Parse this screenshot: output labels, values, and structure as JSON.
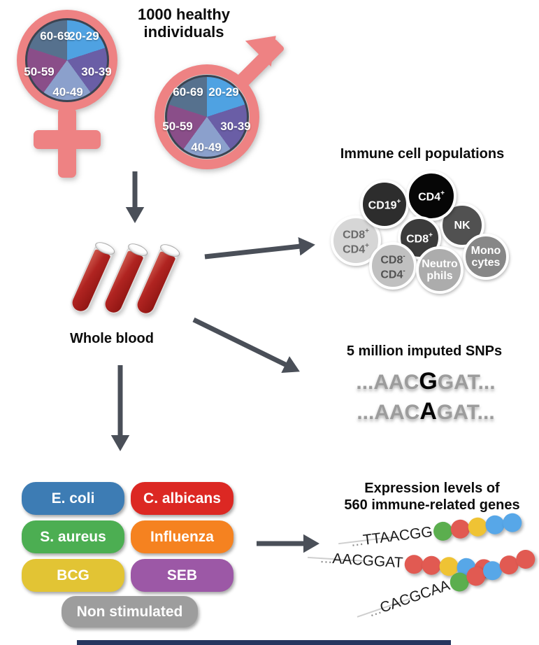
{
  "main_title": {
    "line1": "1000 healthy",
    "line2": "individuals"
  },
  "demographics": {
    "symbol_color": "#EE8283",
    "age_groups": [
      {
        "label": "20-29",
        "color": "#4FA2E2"
      },
      {
        "label": "30-39",
        "color": "#6A5EA6"
      },
      {
        "label": "40-49",
        "color": "#8BA0CC"
      },
      {
        "label": "50-59",
        "color": "#8A4E89"
      },
      {
        "label": "60-69",
        "color": "#56718E"
      }
    ]
  },
  "whole_blood_label": "Whole blood",
  "immune_cells": {
    "title": "Immune cell populations",
    "cells": [
      {
        "lines": [
          {
            "text": "CD8",
            "sup": "+"
          },
          {
            "text": "CD4",
            "sup": "+"
          }
        ],
        "fill": "#D6D6D6",
        "text_color": "#6B6B6B"
      },
      {
        "lines": [
          {
            "text": "CD19",
            "sup": "+"
          }
        ],
        "fill": "#2D2D2D",
        "text_color": "#FFFFFF"
      },
      {
        "lines": [
          {
            "text": "NK",
            "sup": ""
          }
        ],
        "fill": "#515151",
        "text_color": "#FFFFFF"
      },
      {
        "lines": [
          {
            "text": "CD4",
            "sup": "+"
          }
        ],
        "fill": "#060606",
        "text_color": "#FFFFFF"
      },
      {
        "lines": [
          {
            "text": "CD8",
            "sup": "+"
          }
        ],
        "fill": "#3B3B3B",
        "text_color": "#FFFFFF"
      },
      {
        "lines": [
          {
            "text": "Mono",
            "sup": ""
          },
          {
            "text": "cytes",
            "sup": ""
          }
        ],
        "fill": "#878787",
        "text_color": "#FFFFFF"
      },
      {
        "lines": [
          {
            "text": "CD8",
            "sup": "-"
          },
          {
            "text": "CD4",
            "sup": "-"
          }
        ],
        "fill": "#C0C0C0",
        "text_color": "#525252"
      },
      {
        "lines": [
          {
            "text": "Neutro",
            "sup": ""
          },
          {
            "text": "phils",
            "sup": ""
          }
        ],
        "fill": "#ACACAC",
        "text_color": "#FFFFFF"
      }
    ]
  },
  "snps": {
    "title": "5 million imputed SNPs",
    "sequences": [
      {
        "prefix": "...AAC",
        "variant": "G",
        "suffix": "GAT..."
      },
      {
        "prefix": "...AAC",
        "variant": "A",
        "suffix": "GAT..."
      }
    ]
  },
  "stimuli": [
    {
      "label": "E. coli",
      "color": "#3D7CB4"
    },
    {
      "label": "C. albicans",
      "color": "#DC2823"
    },
    {
      "label": "S. aureus",
      "color": "#4CAE52"
    },
    {
      "label": "Influenza",
      "color": "#F58220"
    },
    {
      "label": "BCG",
      "color": "#E2C434"
    },
    {
      "label": "SEB",
      "color": "#9C58A6"
    },
    {
      "label": "Non stimulated",
      "color": "#9D9D9D"
    }
  ],
  "expression": {
    "title_line1": "Expression levels of",
    "title_line2": "560 immune-related genes",
    "bead_colors": {
      "green": "#5BAE4E",
      "red": "#E15A52",
      "yellow": "#EFC334",
      "blue": "#57A7E8"
    },
    "strands": [
      {
        "dots": "...",
        "sequence": "TTAACGG",
        "beads": [
          "green",
          "red",
          "yellow",
          "blue",
          "blue"
        ]
      },
      {
        "dots": "...",
        "sequence": "AACGGAT",
        "beads": [
          "red",
          "red",
          "yellow",
          "blue",
          "red"
        ]
      },
      {
        "dots": "...",
        "sequence": "CACGCAA",
        "beads": [
          "green",
          "red",
          "blue",
          "red",
          "red"
        ]
      }
    ]
  },
  "arrow_color": "#4A4F58"
}
